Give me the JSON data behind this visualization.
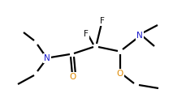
{
  "background_color": "#ffffff",
  "bond_color": "#000000",
  "atom_colors": {
    "N": "#1a1acd",
    "O": "#dd8800",
    "F": "#111111",
    "C": "#000000"
  },
  "line_width": 1.6,
  "font_size": 7.5
}
